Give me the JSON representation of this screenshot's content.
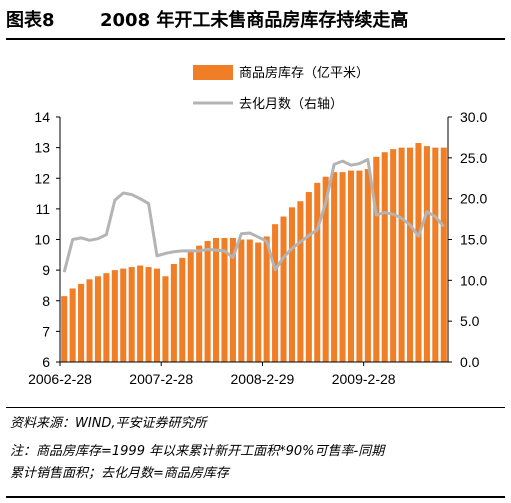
{
  "header": {
    "figure_label": "图表8",
    "title": "2008 年开工未售商品房库存持续走高"
  },
  "footer": {
    "source": "资料来源：WIND,平安证券研究所",
    "note_line1": "注：商品房库存=1999 年以来累计新开工面积*90%可售率-同期",
    "note_line2": "累计销售面积；去化月数=商品房库存"
  },
  "chart_data": {
    "type": "bar",
    "x_tick_labels": [
      "2006-2-28",
      "2007-2-28",
      "2008-2-29",
      "2009-2-28"
    ],
    "y_left": {
      "ylim": [
        6,
        14
      ],
      "ticks": [
        "6",
        "7",
        "8",
        "9",
        "10",
        "11",
        "12",
        "13",
        "14"
      ]
    },
    "y_right": {
      "ylim": [
        0,
        30
      ],
      "ticks": [
        "0.0",
        "5.0",
        "10.0",
        "15.0",
        "20.0",
        "25.0",
        "30.0"
      ]
    },
    "grid": false,
    "legend_position": "top-right",
    "series": [
      {
        "name": "商品房库存（亿平米）",
        "kind": "bar",
        "axis": "left",
        "color": "#F07E26",
        "values": [
          8.15,
          8.4,
          8.55,
          8.7,
          8.8,
          8.9,
          9.0,
          9.05,
          9.1,
          9.15,
          9.1,
          9.05,
          8.8,
          9.2,
          9.4,
          9.6,
          9.8,
          9.95,
          10.05,
          10.05,
          10.05,
          10.0,
          10.0,
          9.9,
          10.1,
          10.5,
          10.75,
          11.05,
          11.25,
          11.55,
          11.85,
          12.05,
          12.2,
          12.2,
          12.25,
          12.25,
          12.3,
          12.7,
          12.85,
          12.95,
          13.0,
          13.0,
          13.15,
          13.05,
          13.0,
          13.0
        ]
      },
      {
        "name": "去化月数（右轴）",
        "kind": "line",
        "axis": "right",
        "color": "#B4B4B4",
        "values": [
          11.0,
          15.0,
          15.2,
          14.9,
          15.1,
          15.6,
          19.8,
          20.7,
          20.5,
          20.0,
          19.4,
          13.0,
          13.3,
          13.5,
          13.6,
          13.6,
          13.6,
          13.8,
          13.7,
          13.6,
          12.8,
          15.7,
          15.8,
          15.3,
          14.8,
          11.3,
          12.8,
          13.9,
          14.7,
          15.5,
          16.2,
          19.5,
          24.2,
          24.6,
          24.1,
          24.3,
          24.8,
          18.0,
          18.3,
          18.1,
          17.6,
          16.8,
          15.4,
          18.4,
          17.8,
          16.6
        ]
      }
    ]
  }
}
